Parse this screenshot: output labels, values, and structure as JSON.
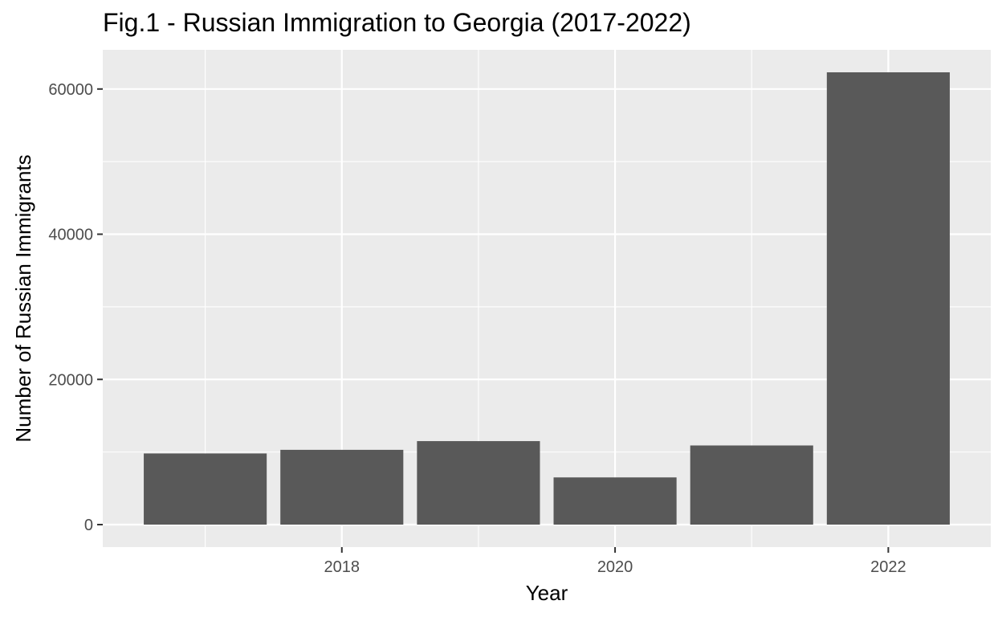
{
  "chart_data": {
    "type": "bar",
    "title": "Fig.1 - Russian Immigration to Georgia (2017-2022)",
    "xlabel": "Year",
    "ylabel": "Number of Russian Immigrants",
    "categories": [
      2017,
      2018,
      2019,
      2020,
      2021,
      2022
    ],
    "values": [
      9800,
      10300,
      11500,
      6500,
      10900,
      62300
    ],
    "x_ticks": [
      "2018",
      "2020",
      "2022"
    ],
    "y_ticks": [
      "0",
      "20000",
      "40000",
      "60000"
    ],
    "xlim": [
      2016.25,
      2022.75
    ],
    "ylim": [
      -3100,
      65400
    ],
    "grid": true,
    "colors": {
      "panel": "#ebebeb",
      "grid": "#ffffff",
      "bar": "#595959",
      "tick_text": "#4d4d4d",
      "tick_mark": "#333333"
    }
  }
}
